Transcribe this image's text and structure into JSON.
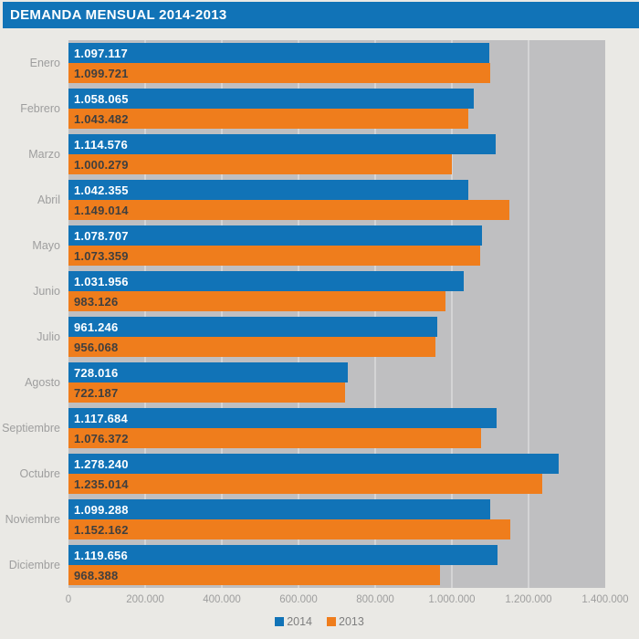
{
  "page": {
    "background": "#eae9e5"
  },
  "header": {
    "title": "DEMANDA MENSUAL 2014-2013",
    "background": "#1173b7",
    "text_color": "#ffffff"
  },
  "chart_data": {
    "type": "bar",
    "orientation": "horizontal",
    "title": "DEMANDA MENSUAL 2014-2013",
    "categories": [
      "Enero",
      "Febrero",
      "Marzo",
      "Abril",
      "Mayo",
      "Junio",
      "Julio",
      "Agosto",
      "Septiembre",
      "Octubre",
      "Noviembre",
      "Diciembre"
    ],
    "series": [
      {
        "name": "2014",
        "color": "#1173b7",
        "label_color": "#ffffff",
        "values": [
          1097117,
          1058065,
          1114576,
          1042355,
          1078707,
          1031956,
          961246,
          728016,
          1117684,
          1278240,
          1099288,
          1119656
        ],
        "labels": [
          "1.097.117",
          "1.058.065",
          "1.114.576",
          "1.042.355",
          "1.078.707",
          "1.031.956",
          "961.246",
          "728.016",
          "1.117.684",
          "1.278.240",
          "1.099.288",
          "1.119.656"
        ]
      },
      {
        "name": "2013",
        "color": "#ef7d1c",
        "label_color": "#3f3f3f",
        "values": [
          1099721,
          1043482,
          1000279,
          1149014,
          1073359,
          983126,
          956068,
          722187,
          1076372,
          1235014,
          1152162,
          968388
        ],
        "labels": [
          "1.099.721",
          "1.043.482",
          "1.000.279",
          "1.149.014",
          "1.073.359",
          "983.126",
          "956.068",
          "722.187",
          "1.076.372",
          "1.235.014",
          "1.152.162",
          "968.388"
        ]
      }
    ],
    "x_axis": {
      "min": 0,
      "max": 1400000,
      "tick_interval": 200000,
      "tick_labels": [
        "0",
        "200.000",
        "400.000",
        "600.000",
        "800.000",
        "1.000.000",
        "1.200.000",
        "1.400.000"
      ]
    },
    "legend": {
      "position": "bottom",
      "items": [
        {
          "label": "2014",
          "color": "#1173b7"
        },
        {
          "label": "2013",
          "color": "#ef7d1c"
        }
      ]
    },
    "plot": {
      "background": "#bfbfc1",
      "gridline_color": "#d4d4d5",
      "grid": "vertical"
    }
  }
}
